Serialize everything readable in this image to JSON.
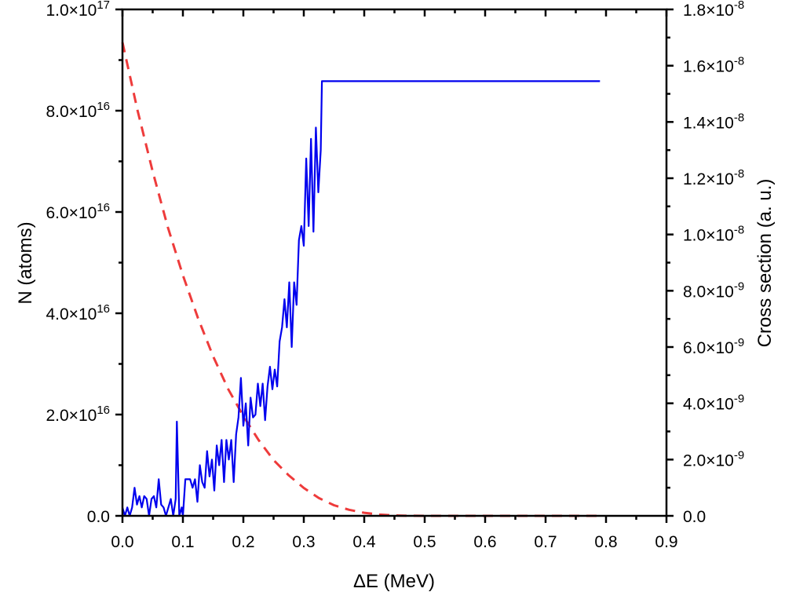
{
  "chart_data": {
    "type": "line",
    "title": "",
    "xlabel": "ΔE (MeV)",
    "ylabel": "N (atoms)",
    "y2label": "Cross section (a. u.)",
    "xlim": [
      0.0,
      0.9
    ],
    "ylim": [
      0,
      1e+17
    ],
    "y2lim": [
      0,
      1.8e-08
    ],
    "xticks": [
      "0.0",
      "0.1",
      "0.2",
      "0.3",
      "0.4",
      "0.5",
      "0.6",
      "0.7",
      "0.8",
      "0.9"
    ],
    "yticks": [
      {
        "mant": "0.0",
        "exp": ""
      },
      {
        "mant": "2.0×10",
        "exp": "16"
      },
      {
        "mant": "4.0×10",
        "exp": "16"
      },
      {
        "mant": "6.0×10",
        "exp": "16"
      },
      {
        "mant": "8.0×10",
        "exp": "16"
      },
      {
        "mant": "1.0×10",
        "exp": "17"
      }
    ],
    "y2ticks": [
      {
        "mant": "0.0",
        "exp": ""
      },
      {
        "mant": "2.0×10",
        "exp": "-9"
      },
      {
        "mant": "4.0×10",
        "exp": "-9"
      },
      {
        "mant": "6.0×10",
        "exp": "-9"
      },
      {
        "mant": "8.0×10",
        "exp": "-9"
      },
      {
        "mant": "1.0×10",
        "exp": "-8"
      },
      {
        "mant": "1.2×10",
        "exp": "-8"
      },
      {
        "mant": "1.4×10",
        "exp": "-8"
      },
      {
        "mant": "1.6×10",
        "exp": "-8"
      },
      {
        "mant": "1.8×10",
        "exp": "-8"
      }
    ],
    "grid": false,
    "legend": "none",
    "series": [
      {
        "name": "N (atoms)",
        "axis": "left",
        "style": "dashed",
        "color": "#ee3b3b",
        "x": [
          0.0,
          0.025,
          0.05,
          0.075,
          0.1,
          0.125,
          0.15,
          0.175,
          0.2,
          0.225,
          0.25,
          0.275,
          0.3,
          0.325,
          0.35,
          0.375,
          0.4,
          0.425,
          0.45,
          0.475,
          0.5,
          0.55,
          0.6,
          0.65,
          0.7,
          0.75,
          0.79
        ],
        "y": [
          9.35e+16,
          8e+16,
          6.8e+16,
          5.7e+16,
          4.75e+16,
          3.9e+16,
          3.15e+16,
          2.5e+16,
          1.97e+16,
          1.5e+16,
          1.1e+16,
          8000000000000000.0,
          5500000000000000.0,
          3500000000000000.0,
          2100000000000000.0,
          1200000000000000.0,
          600000000000000.0,
          250000000000000.0,
          80000000000000.0,
          20000000000000.0,
          0.0,
          0.0,
          0.0,
          0.0,
          0.0,
          0.0,
          0.0
        ]
      },
      {
        "name": "Cross section (a. u.)",
        "axis": "right",
        "style": "solid",
        "color": "#0000ee",
        "x": [
          0.0,
          0.004,
          0.008,
          0.012,
          0.016,
          0.02,
          0.024,
          0.028,
          0.032,
          0.036,
          0.04,
          0.044,
          0.048,
          0.052,
          0.056,
          0.06,
          0.064,
          0.068,
          0.072,
          0.076,
          0.08,
          0.084,
          0.088,
          0.09,
          0.094,
          0.098,
          0.1,
          0.104,
          0.108,
          0.112,
          0.116,
          0.12,
          0.124,
          0.128,
          0.132,
          0.136,
          0.14,
          0.144,
          0.148,
          0.152,
          0.156,
          0.16,
          0.164,
          0.168,
          0.172,
          0.176,
          0.18,
          0.184,
          0.188,
          0.192,
          0.196,
          0.2,
          0.204,
          0.208,
          0.212,
          0.216,
          0.22,
          0.224,
          0.228,
          0.232,
          0.236,
          0.24,
          0.244,
          0.248,
          0.252,
          0.256,
          0.26,
          0.264,
          0.268,
          0.272,
          0.276,
          0.28,
          0.284,
          0.288,
          0.292,
          0.296,
          0.3,
          0.304,
          0.308,
          0.312,
          0.316,
          0.32,
          0.324,
          0.328,
          0.33,
          0.79
        ],
        "y": [
          3e-10,
          0.0,
          3e-10,
          0.0,
          3e-10,
          1e-09,
          4e-10,
          7e-10,
          3e-10,
          7e-10,
          6e-10,
          0.0,
          6e-10,
          7e-10,
          3e-10,
          1.3e-09,
          4e-10,
          3e-10,
          0.0,
          3e-10,
          6e-10,
          0.0,
          6e-10,
          3.35e-09,
          0.0,
          3e-10,
          0.0,
          1.3e-09,
          1.3e-09,
          1.3e-09,
          1e-09,
          1.3e-09,
          5e-10,
          1.8e-09,
          1.2e-09,
          1e-09,
          2.3e-09,
          1.4e-09,
          2e-09,
          9e-10,
          2.5e-09,
          1.8e-09,
          2.7e-09,
          1.2e-09,
          2.7e-09,
          2e-09,
          2.7e-09,
          1.2e-09,
          2.9e-09,
          3.5e-09,
          4.9e-09,
          3.2e-09,
          4e-09,
          2.5e-09,
          4.2e-09,
          3.5e-09,
          3.6e-09,
          4.7e-09,
          3.9e-09,
          4.7e-09,
          3.4e-09,
          4.6e-09,
          5.3e-09,
          4.5e-09,
          5.2e-09,
          4.6e-09,
          6.2e-09,
          6.7e-09,
          7.7e-09,
          6.7e-09,
          8.3e-09,
          6e-09,
          8.3e-09,
          7.5e-09,
          9.8e-09,
          1.03e-08,
          9.6e-09,
          1.27e-08,
          1.03e-08,
          1.34e-08,
          1.01e-08,
          1.38e-08,
          1.15e-08,
          1.3e-08,
          1.545e-08,
          1.545e-08
        ]
      }
    ]
  }
}
